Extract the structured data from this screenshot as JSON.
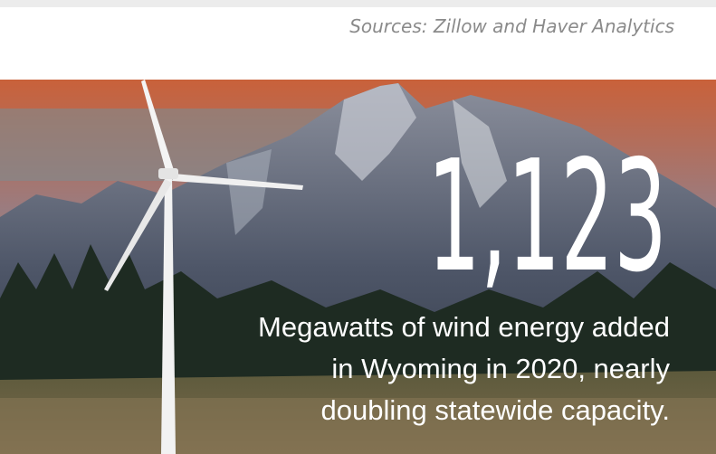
{
  "source": "Sources: Zillow and Haver Analytics",
  "stat": {
    "value": "1,123",
    "caption": [
      "Megawatts of wind energy added",
      "in Wyoming in 2020, nearly",
      "doubling statewide capacity."
    ]
  }
}
